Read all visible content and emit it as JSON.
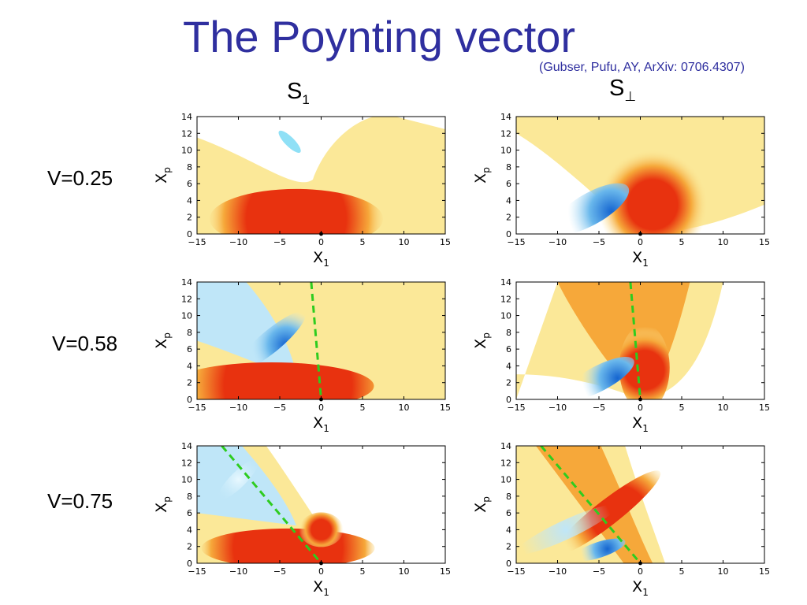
{
  "slide": {
    "title": "The Poynting vector",
    "citation": "(Gubser, Pufu, AY, ArXiv: 0706.4307)"
  },
  "columns": [
    {
      "main": "S",
      "sub": "1"
    },
    {
      "main": "S",
      "sub": "⊥"
    }
  ],
  "rows": [
    {
      "label": "V=0.25"
    },
    {
      "label": "V=0.58"
    },
    {
      "label": "V=0.75"
    }
  ],
  "axes": {
    "x_label_main": "X",
    "x_label_sub": "1",
    "y_label_main": "X",
    "y_label_sub": "p",
    "x_ticks": [
      "−15",
      "−10",
      "−5",
      "0",
      "5",
      "10",
      "15"
    ],
    "y_ticks": [
      "0",
      "2",
      "4",
      "6",
      "8",
      "10",
      "12",
      "14"
    ]
  },
  "colors": {
    "title": "#2f2f9f",
    "positive_high": "#e8320f",
    "positive_mid": "#f6a83a",
    "positive_low": "#fbe898",
    "negative_high": "#1565d0",
    "negative_low": "#bfe6f8",
    "mach_cone": "#2ecc1f"
  },
  "chart_data": [
    {
      "type": "heatmap",
      "panel": "S_1, V=0.25",
      "x_range": [
        -15,
        15
      ],
      "y_range": [
        0,
        14
      ],
      "mach_cone": false
    },
    {
      "type": "heatmap",
      "panel": "S_perp, V=0.25",
      "x_range": [
        -15,
        15
      ],
      "y_range": [
        0,
        14
      ],
      "mach_cone": false
    },
    {
      "type": "heatmap",
      "panel": "S_1, V=0.58",
      "x_range": [
        -15,
        15
      ],
      "y_range": [
        0,
        14
      ],
      "mach_cone": true
    },
    {
      "type": "heatmap",
      "panel": "S_perp, V=0.58",
      "x_range": [
        -15,
        15
      ],
      "y_range": [
        0,
        14
      ],
      "mach_cone": true
    },
    {
      "type": "heatmap",
      "panel": "S_1, V=0.75",
      "x_range": [
        -15,
        15
      ],
      "y_range": [
        0,
        14
      ],
      "mach_cone": true
    },
    {
      "type": "heatmap",
      "panel": "S_perp, V=0.75",
      "x_range": [
        -15,
        15
      ],
      "y_range": [
        0,
        14
      ],
      "mach_cone": true
    }
  ]
}
